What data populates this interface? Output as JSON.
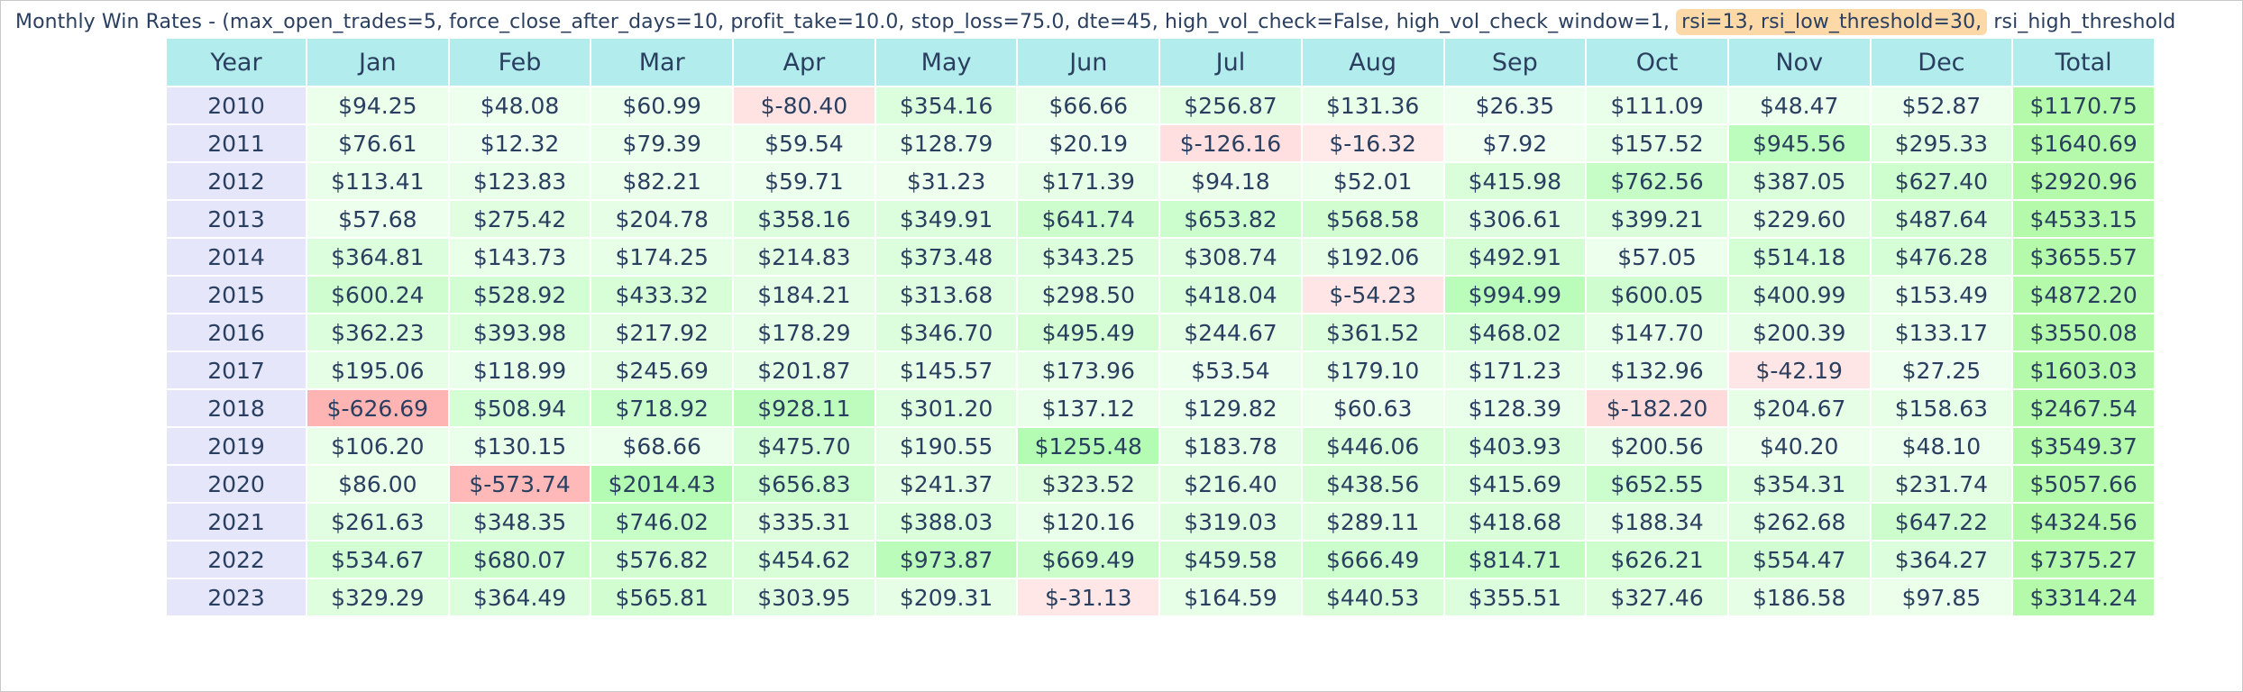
{
  "title": {
    "prefix": "Monthly Win Rates - (max_open_trades=5, force_close_after_days=10, profit_take=10.0, stop_loss=75.0, dte=45, high_vol_check=False, high_vol_check_window=1,",
    "highlight": "rsi=13, rsi_low_threshold=30,",
    "suffix": "rsi_high_threshold"
  },
  "colors": {
    "header_bg": "#b2ecec",
    "year_bg": "#e6e6fa",
    "title_highlight": "#fdd9a8",
    "text": "#2a3f5f"
  },
  "chart_data": {
    "type": "table",
    "columns": [
      "Year",
      "Jan",
      "Feb",
      "Mar",
      "Apr",
      "May",
      "Jun",
      "Jul",
      "Aug",
      "Sep",
      "Oct",
      "Nov",
      "Dec",
      "Total"
    ],
    "rows": [
      [
        "2010",
        "$94.25",
        "$48.08",
        "$60.99",
        "$-80.40",
        "$354.16",
        "$66.66",
        "$256.87",
        "$131.36",
        "$26.35",
        "$111.09",
        "$48.47",
        "$52.87",
        "$1170.75"
      ],
      [
        "2011",
        "$76.61",
        "$12.32",
        "$79.39",
        "$59.54",
        "$128.79",
        "$20.19",
        "$-126.16",
        "$-16.32",
        "$7.92",
        "$157.52",
        "$945.56",
        "$295.33",
        "$1640.69"
      ],
      [
        "2012",
        "$113.41",
        "$123.83",
        "$82.21",
        "$59.71",
        "$31.23",
        "$171.39",
        "$94.18",
        "$52.01",
        "$415.98",
        "$762.56",
        "$387.05",
        "$627.40",
        "$2920.96"
      ],
      [
        "2013",
        "$57.68",
        "$275.42",
        "$204.78",
        "$358.16",
        "$349.91",
        "$641.74",
        "$653.82",
        "$568.58",
        "$306.61",
        "$399.21",
        "$229.60",
        "$487.64",
        "$4533.15"
      ],
      [
        "2014",
        "$364.81",
        "$143.73",
        "$174.25",
        "$214.83",
        "$373.48",
        "$343.25",
        "$308.74",
        "$192.06",
        "$492.91",
        "$57.05",
        "$514.18",
        "$476.28",
        "$3655.57"
      ],
      [
        "2015",
        "$600.24",
        "$528.92",
        "$433.32",
        "$184.21",
        "$313.68",
        "$298.50",
        "$418.04",
        "$-54.23",
        "$994.99",
        "$600.05",
        "$400.99",
        "$153.49",
        "$4872.20"
      ],
      [
        "2016",
        "$362.23",
        "$393.98",
        "$217.92",
        "$178.29",
        "$346.70",
        "$495.49",
        "$244.67",
        "$361.52",
        "$468.02",
        "$147.70",
        "$200.39",
        "$133.17",
        "$3550.08"
      ],
      [
        "2017",
        "$195.06",
        "$118.99",
        "$245.69",
        "$201.87",
        "$145.57",
        "$173.96",
        "$53.54",
        "$179.10",
        "$171.23",
        "$132.96",
        "$-42.19",
        "$27.25",
        "$1603.03"
      ],
      [
        "2018",
        "$-626.69",
        "$508.94",
        "$718.92",
        "$928.11",
        "$301.20",
        "$137.12",
        "$129.82",
        "$60.63",
        "$128.39",
        "$-182.20",
        "$204.67",
        "$158.63",
        "$2467.54"
      ],
      [
        "2019",
        "$106.20",
        "$130.15",
        "$68.66",
        "$475.70",
        "$190.55",
        "$1255.48",
        "$183.78",
        "$446.06",
        "$403.93",
        "$200.56",
        "$40.20",
        "$48.10",
        "$3549.37"
      ],
      [
        "2020",
        "$86.00",
        "$-573.74",
        "$2014.43",
        "$656.83",
        "$241.37",
        "$323.52",
        "$216.40",
        "$438.56",
        "$415.69",
        "$652.55",
        "$354.31",
        "$231.74",
        "$5057.66"
      ],
      [
        "2021",
        "$261.63",
        "$348.35",
        "$746.02",
        "$335.31",
        "$388.03",
        "$120.16",
        "$319.03",
        "$289.11",
        "$418.68",
        "$188.34",
        "$262.68",
        "$647.22",
        "$4324.56"
      ],
      [
        "2022",
        "$534.67",
        "$680.07",
        "$576.82",
        "$454.62",
        "$973.87",
        "$669.49",
        "$459.58",
        "$666.49",
        "$814.71",
        "$626.21",
        "$554.47",
        "$364.27",
        "$7375.27"
      ],
      [
        "2023",
        "$329.29",
        "$364.49",
        "$565.81",
        "$303.95",
        "$209.31",
        "$-31.13",
        "$164.59",
        "$440.53",
        "$355.51",
        "$327.46",
        "$186.58",
        "$97.85",
        "$3314.24"
      ]
    ]
  }
}
